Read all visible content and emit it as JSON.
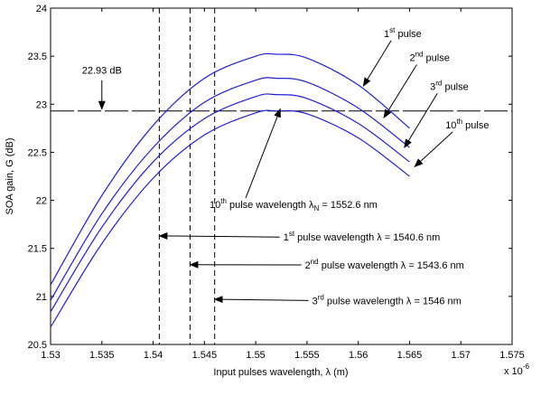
{
  "chart_data": {
    "type": "line",
    "xlabel": "Input pulses wavelength, λ (m)",
    "ylabel": "SOA gain, G (dB)",
    "x_multiplier": "x 10",
    "x_multiplier_exp": "-6",
    "xlim": [
      1.53,
      1.575
    ],
    "ylim": [
      20.5,
      24
    ],
    "xticks": [
      1.53,
      1.535,
      1.54,
      1.545,
      1.55,
      1.555,
      1.56,
      1.565,
      1.57,
      1.575
    ],
    "yticks": [
      20.5,
      21,
      21.5,
      22,
      22.5,
      23,
      23.5,
      24
    ],
    "xtick_labels": [
      "1.53",
      "1.535",
      "1.54",
      "1.545",
      "1.55",
      "1.555",
      "1.56",
      "1.565",
      "1.57",
      "1.575"
    ],
    "ytick_labels": [
      "20.5",
      "21",
      "21.5",
      "22",
      "22.5",
      "23",
      "23.5",
      "24"
    ],
    "grid": false,
    "curve_color": "#1f1fd6",
    "series": [
      {
        "name": "1st pulse",
        "x": [
          1.53,
          1.535,
          1.54,
          1.545,
          1.55,
          1.552,
          1.555,
          1.56,
          1.565
        ],
        "y": [
          21.12,
          22.05,
          22.78,
          23.27,
          23.5,
          23.52,
          23.48,
          23.2,
          22.75
        ]
      },
      {
        "name": "2nd pulse",
        "x": [
          1.53,
          1.535,
          1.54,
          1.545,
          1.55,
          1.552,
          1.555,
          1.56,
          1.565
        ],
        "y": [
          20.96,
          21.86,
          22.55,
          23.02,
          23.25,
          23.27,
          23.23,
          22.96,
          22.55
        ]
      },
      {
        "name": "3rd pulse",
        "x": [
          1.53,
          1.535,
          1.54,
          1.545,
          1.55,
          1.552,
          1.555,
          1.56,
          1.565
        ],
        "y": [
          20.84,
          21.72,
          22.4,
          22.85,
          23.08,
          23.1,
          23.06,
          22.8,
          22.4
        ]
      },
      {
        "name": "10th pulse",
        "x": [
          1.53,
          1.535,
          1.54,
          1.545,
          1.55,
          1.552,
          1.555,
          1.56,
          1.565
        ],
        "y": [
          20.68,
          21.55,
          22.23,
          22.68,
          22.91,
          22.93,
          22.9,
          22.65,
          22.25
        ]
      }
    ],
    "reference_line": {
      "y": 22.93,
      "label": "22.93 dB",
      "label_x": 1.535
    },
    "vertical_lines": [
      {
        "x": 1.5406
      },
      {
        "x": 1.5436
      },
      {
        "x": 1.546
      }
    ],
    "annotations": {
      "pulse_labels": [
        {
          "num": "1",
          "sup": "st",
          "rest": " pulse",
          "text_x": 1.5625,
          "text_y": 23.7,
          "arrow_to_x": 1.5605,
          "arrow_to_y": 23.19
        },
        {
          "num": "2",
          "sup": "nd",
          "rest": " pulse",
          "text_x": 1.565,
          "text_y": 23.45,
          "arrow_to_x": 1.5625,
          "arrow_to_y": 22.86
        },
        {
          "num": "3",
          "sup": "rd",
          "rest": " pulse",
          "text_x": 1.567,
          "text_y": 23.15,
          "arrow_to_x": 1.5645,
          "arrow_to_y": 22.55
        },
        {
          "num": "10",
          "sup": "th",
          "rest": " pulse",
          "text_x": 1.5685,
          "text_y": 22.75,
          "arrow_to_x": 1.5655,
          "arrow_to_y": 22.35
        }
      ],
      "wavelength_labels": [
        {
          "num": "10",
          "sup": "th",
          "rest": " pulse wavelength λ",
          "sub": "N",
          "value": " = 1552.6 nm",
          "text_x": 1.5455,
          "text_y": 21.92,
          "arrow_to_x": 1.5524,
          "arrow_to_y": 22.95
        },
        {
          "num": "1",
          "sup": "st",
          "rest": " pulse wavelength λ",
          "sub": "",
          "value": " = 1540.6 nm",
          "text_x": 1.5527,
          "text_y": 21.58,
          "arrow_to_x": 1.5406,
          "arrow_to_y": 21.63
        },
        {
          "num": "2",
          "sup": "nd",
          "rest": " pulse wavelength λ",
          "sub": "",
          "value": " = 1543.6 nm",
          "text_x": 1.5548,
          "text_y": 21.29,
          "arrow_to_x": 1.5436,
          "arrow_to_y": 21.33
        },
        {
          "num": "3",
          "sup": "rd",
          "rest": " pulse wavelength λ",
          "sub": "",
          "value": " = 1546 nm",
          "text_x": 1.5555,
          "text_y": 20.92,
          "arrow_to_x": 1.546,
          "arrow_to_y": 20.97
        }
      ]
    }
  }
}
